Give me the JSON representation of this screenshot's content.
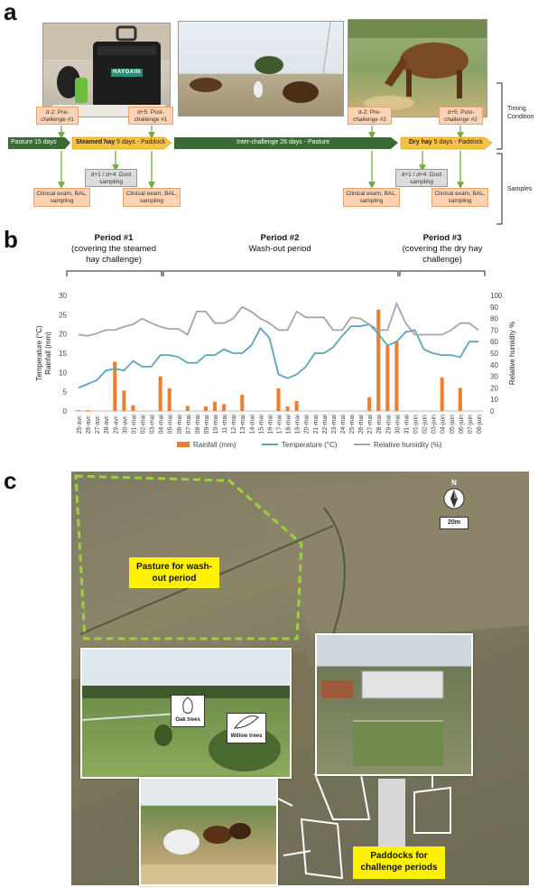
{
  "panel_a": {
    "letter": "a",
    "timeline_labels": {
      "pasture_start": "Pasture 15 days",
      "steamed": "Steamed hay",
      "steamed_rest": " 5 days - Paddock",
      "interchallenge": "Inter-challenge 26 days - Pasture",
      "dry": "Dry hay",
      "dry_rest": " 5 days - Paddock"
    },
    "boxes": {
      "pre1": "d-2: Pre-challenge #1",
      "post1": "d+5: Post-challenge #1",
      "pre2": "d-2: Pre-challenge #2",
      "post2": "d+5: Post-challenge #2",
      "dust1": "d+1 / d+4: Dust sampling",
      "dust2": "d+1 / d+4: Dust sampling",
      "clin1": "Clinical exam, BAL, sampling",
      "clin2": "Clinical exam, BAL, sampling",
      "clin3": "Clinical exam, BAL, sampling",
      "clin4": "Clinical exam, BAL, sampling"
    },
    "side": {
      "timing": "Timing",
      "condition": "Condition",
      "samples": "Samples"
    },
    "haygain_logo": "HAYGAIN"
  },
  "panel_b": {
    "letter": "b",
    "period1_title": "Period #1",
    "period1_sub": "(covering the steamed hay challenge)",
    "period2_title": "Period #2",
    "period2_sub": "Wash-out period",
    "period3_title": "Period #3",
    "period3_sub": "(covering the dry hay challenge)"
  },
  "chart_data": {
    "type": "bar",
    "categories": [
      "25-avr.",
      "26-avr.",
      "27-avr.",
      "28-avr.",
      "29-avr.",
      "30-avr.",
      "01-mai",
      "02-mai",
      "03-mai",
      "04-mai",
      "05-mai",
      "06-mai",
      "07-mai",
      "08-mai",
      "09-mai",
      "10-mai",
      "11-mai",
      "12-mai",
      "13-mai",
      "14-mai",
      "15-mai",
      "16-mai",
      "17-mai",
      "18-mai",
      "19-mai",
      "20-mai",
      "21-mai",
      "22-mai",
      "23-mai",
      "24-mai",
      "25-mai",
      "26-mai",
      "27-mai",
      "28-mai",
      "29-mai",
      "30-mai",
      "31-mai",
      "01-juin",
      "02-juin",
      "03-juin",
      "04-juin",
      "05-juin",
      "06-juin",
      "07-juin",
      "08-juin"
    ],
    "series": [
      {
        "name": "Rainfall (mm)",
        "type": "bar",
        "color": "#ed7d31",
        "values": [
          0.2,
          0.2,
          0,
          0,
          12.8,
          5.3,
          1.5,
          0,
          0,
          9,
          5.9,
          0,
          1.3,
          0,
          1.2,
          2.4,
          1.8,
          0,
          4.2,
          0,
          0,
          0,
          5.9,
          1.2,
          2.6,
          0,
          0,
          0,
          0,
          0,
          0,
          0,
          3.6,
          26.3,
          16.9,
          18.2,
          0,
          0,
          0,
          0,
          8.7,
          0,
          6,
          0,
          0
        ]
      },
      {
        "name": "Temperature (°C)",
        "type": "line",
        "color": "#5aa5b8",
        "values": [
          6,
          7,
          8,
          10.5,
          11,
          10.5,
          13,
          11.5,
          11.5,
          14.5,
          14.5,
          14,
          12.5,
          12.5,
          14.5,
          14.5,
          16,
          15,
          15,
          17,
          21.5,
          19,
          9.5,
          8.5,
          9.5,
          11.5,
          15,
          15,
          16.5,
          19.5,
          22,
          22,
          22.5,
          20,
          17,
          18,
          20.5,
          21,
          16,
          15,
          14.5,
          14.5,
          14,
          18,
          18
        ]
      },
      {
        "name": "Relative humidity (%)",
        "type": "line",
        "color": "#a6a6a6",
        "values": [
          66,
          65,
          67,
          70,
          70,
          73,
          75,
          80,
          76,
          73,
          71,
          71,
          66,
          86,
          86,
          76,
          76,
          80,
          90,
          86,
          80,
          76,
          70,
          70,
          86,
          81,
          81,
          81,
          70,
          70,
          81,
          80,
          75,
          70,
          70,
          93,
          76,
          66,
          66,
          66,
          66,
          70,
          76,
          76,
          70
        ]
      }
    ],
    "ylabel": "Temperature (°C)",
    "ylabel2": "Rainfall (mm)",
    "y2label": "Relative humidity %",
    "ylim": [
      0,
      30
    ],
    "yticks": [
      "0",
      "5",
      "10",
      "15",
      "20",
      "25",
      "30"
    ],
    "y2lim": [
      0,
      100
    ],
    "y2ticks": [
      "0",
      "10",
      "20",
      "30",
      "40",
      "50",
      "60",
      "70",
      "80",
      "90",
      "100"
    ],
    "grid": false,
    "legend_position": "bottom"
  },
  "panel_c": {
    "letter": "c",
    "pasture_label": "Pasture for wash-out period",
    "paddocks_label": "Paddocks for challenge periods",
    "north": "N",
    "scale": "20m",
    "oak": "Oak trees",
    "willow": "Willow trees"
  },
  "colors": {
    "arrow_green": "#3a6b35",
    "arrow_yellow": "#f5c242",
    "box_orange": "#fbd3b4",
    "dash_green": "#9bd13d",
    "callout_yellow": "#fff200"
  }
}
